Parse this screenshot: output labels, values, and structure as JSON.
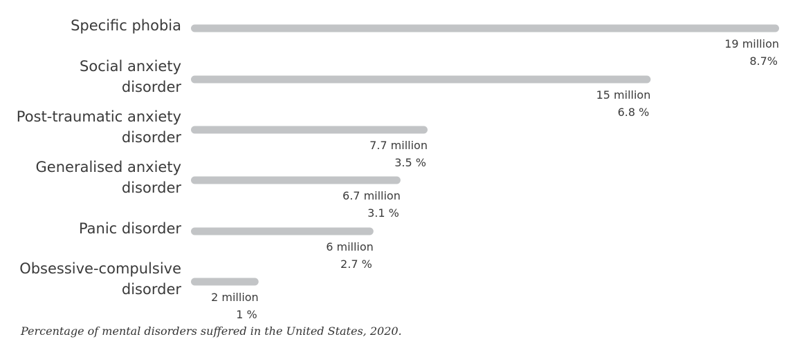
{
  "caption": "Percentage of mental disorders suffered in the United States, 2020.",
  "colors": {
    "bar": "#c2c4c6",
    "text": "#3a3a3a"
  },
  "chart_data": {
    "type": "bar",
    "orientation": "horizontal",
    "categories": [
      [
        "Specific phobia"
      ],
      [
        "Social anxiety",
        "disorder"
      ],
      [
        "Post-traumatic anxiety",
        "disorder"
      ],
      [
        "Generalised anxiety",
        "disorder"
      ],
      [
        "Panic disorder"
      ],
      [
        "Obsessive-compulsive",
        "disorder"
      ]
    ],
    "values": [
      8.7,
      6.8,
      3.5,
      3.1,
      2.7,
      1
    ],
    "value_labels": [
      [
        "19 million",
        "8.7%"
      ],
      [
        "15 million",
        "6.8 %"
      ],
      [
        "7.7 million",
        "3.5 %"
      ],
      [
        "6.7 million",
        "3.1 %"
      ],
      [
        "6 million",
        "2.7 %"
      ],
      [
        "2 million",
        "1 %"
      ]
    ],
    "title": "",
    "xlabel": "",
    "ylabel": "",
    "xlim": [
      0,
      8.7
    ],
    "grid": false,
    "legend": "none"
  }
}
